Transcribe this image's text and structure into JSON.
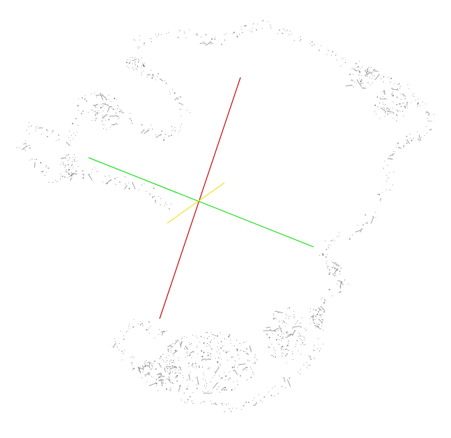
{
  "viewport": {
    "background": "#ffffff",
    "point_color": "#9a9a9a",
    "point_color_dark": "#6e6e6e"
  },
  "axes": [
    {
      "name": "x-axis",
      "color": "#cc0000"
    },
    {
      "name": "y-axis",
      "color": "#00dd00"
    },
    {
      "name": "z-axis",
      "color": "#f0e020"
    }
  ]
}
